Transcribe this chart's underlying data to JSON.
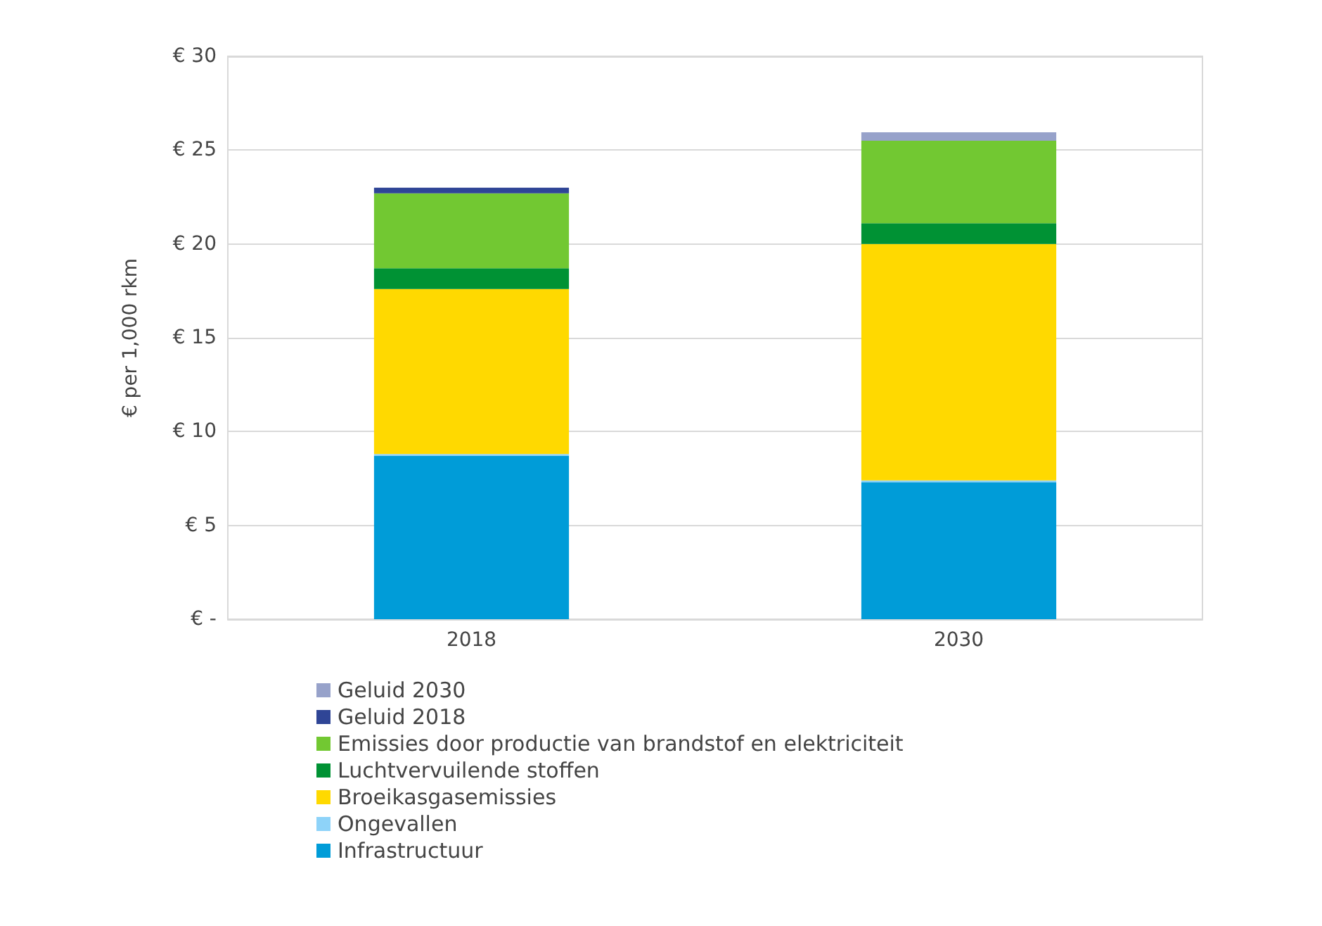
{
  "chart_data": {
    "type": "bar",
    "stacked": true,
    "ylabel": "€ per 1,000 rkm",
    "categories": [
      "2018",
      "2030"
    ],
    "series": [
      {
        "name": "Infrastructuur",
        "color": "#009cd8",
        "values": [
          8.7,
          7.3
        ]
      },
      {
        "name": "Ongevallen",
        "color": "#8ed3f9",
        "values": [
          0.1,
          0.1
        ]
      },
      {
        "name": "Broeikasgasemissies",
        "color": "#ffd900",
        "values": [
          8.8,
          12.6
        ]
      },
      {
        "name": "Luchtvervuilende stoffen",
        "color": "#009234",
        "values": [
          1.1,
          1.1
        ]
      },
      {
        "name": "Emissies door productie van brandstof en elektriciteit",
        "color": "#72c832",
        "values": [
          4.0,
          4.4
        ]
      },
      {
        "name": "Geluid 2018",
        "color": "#2f4596",
        "values": [
          0.3,
          null
        ]
      },
      {
        "name": "Geluid 2030",
        "color": "#97a2ca",
        "values": [
          null,
          0.45
        ]
      }
    ],
    "ylim": [
      0,
      30
    ],
    "yticks": [
      {
        "value": 0,
        "label": "€ -"
      },
      {
        "value": 5,
        "label": "€ 5"
      },
      {
        "value": 10,
        "label": "€ 10"
      },
      {
        "value": 15,
        "label": "€ 15"
      },
      {
        "value": 20,
        "label": "€ 20"
      },
      {
        "value": 25,
        "label": "€ 25"
      },
      {
        "value": 30,
        "label": "€ 30"
      }
    ],
    "grid": "y",
    "legend": "bottom"
  }
}
